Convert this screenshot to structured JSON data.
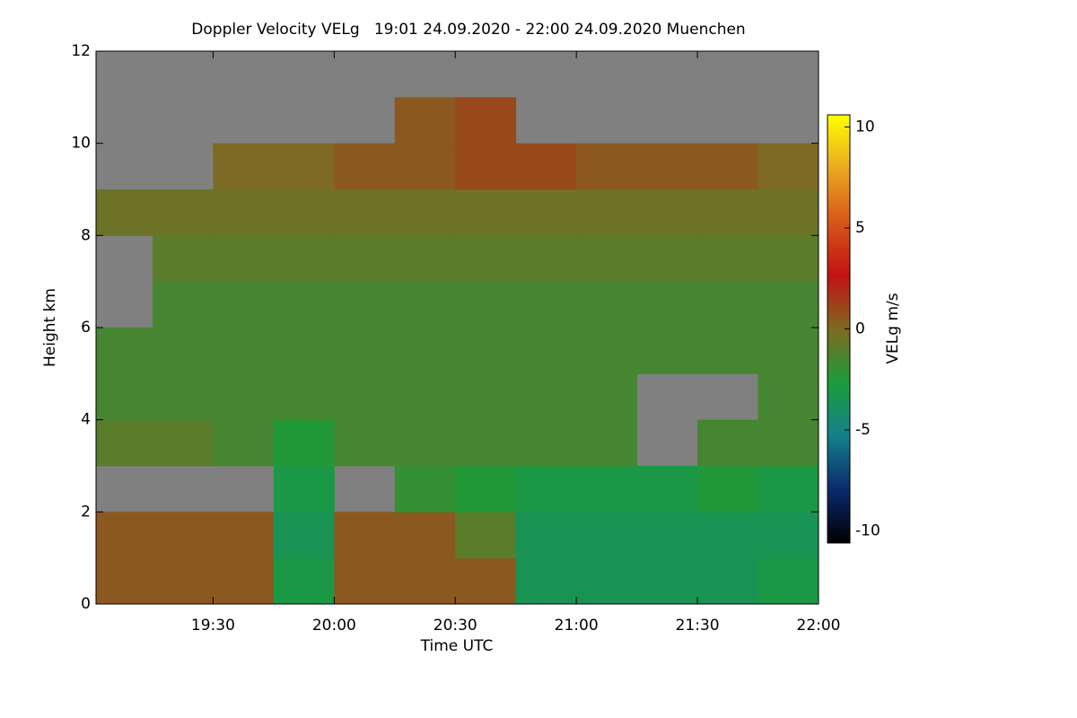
{
  "chart_data": {
    "type": "heatmap",
    "title": "Doppler Velocity VELg   19:01 24.09.2020 - 22:00 24.09.2020 Muenchen",
    "x_label": "Time UTC",
    "y_label": "Height km",
    "colorbar_label": "VELg m/s",
    "xlim": [
      1141,
      1320
    ],
    "xticks": [
      {
        "value": 1170,
        "label": "19:30"
      },
      {
        "value": 1200,
        "label": "20:00"
      },
      {
        "value": 1230,
        "label": "20:30"
      },
      {
        "value": 1260,
        "label": "21:00"
      },
      {
        "value": 1290,
        "label": "21:30"
      },
      {
        "value": 1320,
        "label": "22:00"
      }
    ],
    "ylim": [
      0,
      12
    ],
    "yticks": [
      0,
      2,
      4,
      6,
      8,
      10,
      12
    ],
    "clim": [
      -10.6,
      10.6
    ],
    "cticks": [
      -10,
      -5,
      0,
      5,
      10
    ],
    "colormap": [
      "#000000",
      "#0b2a6e",
      "#14808a",
      "#1c9c3a",
      "#7e6a22",
      "#c21212",
      "#d8561a",
      "#eaa820",
      "#ffff00"
    ],
    "nodata_color": "#808080",
    "x_bins": [
      1141,
      1155,
      1170,
      1185,
      1200,
      1215,
      1230,
      1245,
      1260,
      1275,
      1290,
      1305,
      1320
    ],
    "y_bins": [
      0,
      1,
      2,
      3,
      4,
      5,
      6,
      7,
      8,
      9,
      10,
      11,
      12
    ],
    "z": [
      [
        0.5,
        0.5,
        0.5,
        -3,
        0.5,
        0.5,
        0.5,
        -3.5,
        -3.5,
        -3.5,
        -3.5,
        -3
      ],
      [
        0.5,
        0.5,
        0.5,
        -3.5,
        0.5,
        0.5,
        -1,
        -3.5,
        -3.5,
        -3.5,
        -3.5,
        -3.5
      ],
      [
        null,
        null,
        null,
        -3,
        null,
        -2,
        -2.5,
        -3,
        -3,
        -3,
        -2.5,
        -3
      ],
      [
        -1,
        -1,
        -1.5,
        -2.5,
        -1.5,
        -1.5,
        -1.5,
        -1.5,
        -1.5,
        null,
        -1.5,
        -1.5
      ],
      [
        -1.5,
        -1.5,
        -1.5,
        -1.5,
        -1.5,
        -1.5,
        -1.5,
        -1.5,
        -1.5,
        null,
        null,
        -1.5
      ],
      [
        -1.5,
        -1.5,
        -1.5,
        -1.5,
        -1.5,
        -1.5,
        -1.5,
        -1.5,
        -1.5,
        -1.5,
        -1.5,
        -1.5
      ],
      [
        null,
        -1.5,
        -1.5,
        -1.5,
        -1.5,
        -1.5,
        -1.5,
        -1.5,
        -1.5,
        -1.5,
        -1.5,
        -1.5
      ],
      [
        null,
        -1,
        -1,
        -1,
        -1,
        -1,
        -1,
        -1,
        -1,
        -1,
        -1,
        -1
      ],
      [
        -0.5,
        -0.5,
        -0.5,
        -0.5,
        -0.5,
        -0.5,
        -0.5,
        -0.5,
        -0.5,
        -0.5,
        -0.5,
        -0.5
      ],
      [
        null,
        null,
        0,
        0,
        0.5,
        0.5,
        1,
        1,
        0.5,
        0.5,
        0.5,
        0
      ],
      [
        null,
        null,
        null,
        null,
        null,
        0.5,
        1,
        null,
        null,
        null,
        null,
        null
      ],
      [
        null,
        null,
        null,
        null,
        null,
        null,
        null,
        null,
        null,
        null,
        null,
        null
      ]
    ]
  }
}
